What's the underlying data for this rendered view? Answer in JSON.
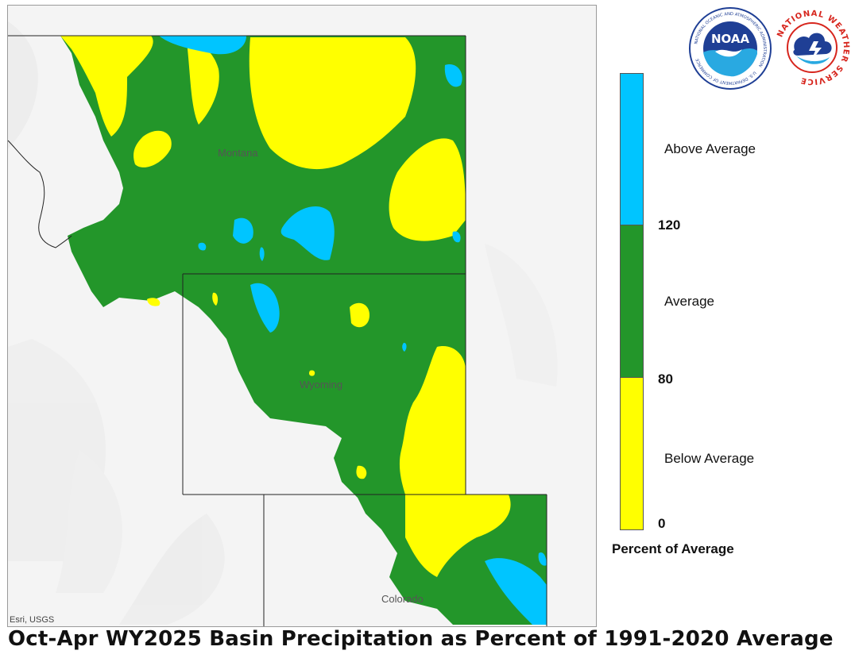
{
  "map": {
    "credit": "Esri, USGS",
    "state_labels": [
      "Montana",
      "Wyoming",
      "Colorado"
    ]
  },
  "legend": {
    "title": "Percent of Average",
    "categories": [
      {
        "label": "Above Average",
        "color": "#00c5ff"
      },
      {
        "label": "Average",
        "color": "#23962a"
      },
      {
        "label": "Below Average",
        "color": "#ffff00"
      }
    ],
    "ticks": [
      "120",
      "80",
      "0"
    ]
  },
  "logos": {
    "noaa_text": "NOAA",
    "noaa_ring_text": "NATIONAL OCEANIC AND ATMOSPHERIC ADMINISTRATION",
    "noaa_bottom_text": "U.S. DEPARTMENT OF COMMERCE",
    "nws_ring_text": "NATIONAL WEATHER SERVICE"
  },
  "colors": {
    "above": "#00c5ff",
    "average": "#23962a",
    "below": "#ffff00",
    "terrain": "#f4f4f4",
    "noaa_blue": "#1f3f95",
    "nws_red": "#d7261e"
  },
  "title": "Oct-Apr WY2025 Basin Precipitation as Percent of 1991-2020 Average"
}
